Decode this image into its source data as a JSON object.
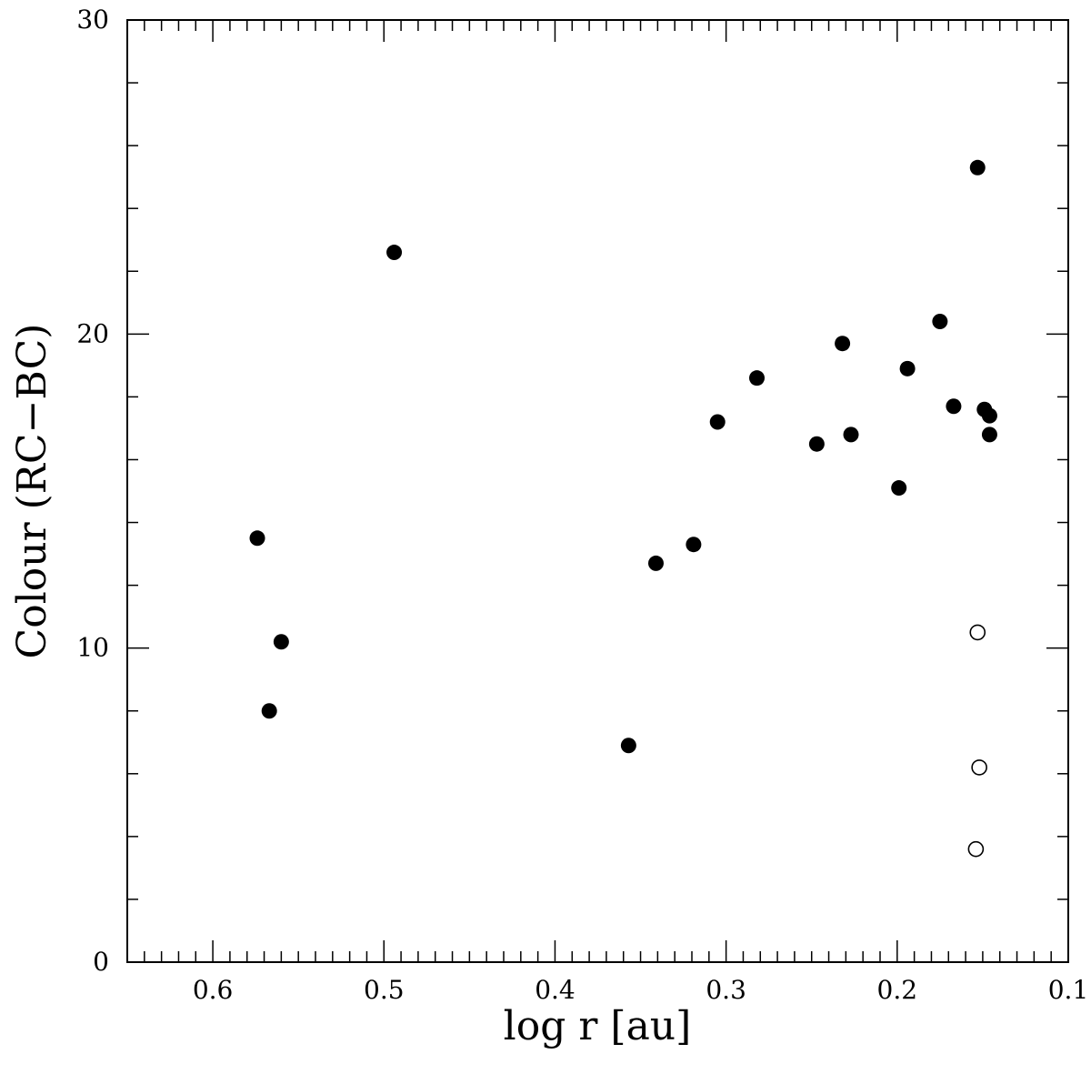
{
  "chart_data": {
    "type": "scatter",
    "title": "",
    "xlabel": "log r [au]",
    "ylabel": "Colour (RC−BC)",
    "xlim": [
      0.65,
      0.1
    ],
    "ylim": [
      0,
      30
    ],
    "x_reversed": true,
    "x_ticks": [
      0.6,
      0.5,
      0.4,
      0.3,
      0.2,
      0.1
    ],
    "x_tick_labels": [
      "0.6",
      "0.5",
      "0.4",
      "0.3",
      "0.2",
      "0.1"
    ],
    "y_ticks": [
      0,
      10,
      20,
      30
    ],
    "y_tick_labels": [
      "0",
      "10",
      "20",
      "30"
    ],
    "grid": false,
    "legend": "none",
    "series": [
      {
        "marker": "filled-circle",
        "color": "#000000",
        "points": [
          {
            "x": 0.574,
            "y": 13.5
          },
          {
            "x": 0.567,
            "y": 8.0
          },
          {
            "x": 0.56,
            "y": 10.2
          },
          {
            "x": 0.494,
            "y": 22.6
          },
          {
            "x": 0.357,
            "y": 6.9
          },
          {
            "x": 0.341,
            "y": 12.7
          },
          {
            "x": 0.319,
            "y": 13.3
          },
          {
            "x": 0.305,
            "y": 17.2
          },
          {
            "x": 0.282,
            "y": 18.6
          },
          {
            "x": 0.247,
            "y": 16.5
          },
          {
            "x": 0.232,
            "y": 19.7
          },
          {
            "x": 0.227,
            "y": 16.8
          },
          {
            "x": 0.199,
            "y": 15.1
          },
          {
            "x": 0.194,
            "y": 18.9
          },
          {
            "x": 0.175,
            "y": 20.4
          },
          {
            "x": 0.167,
            "y": 17.7
          },
          {
            "x": 0.153,
            "y": 25.3
          },
          {
            "x": 0.149,
            "y": 17.6
          },
          {
            "x": 0.146,
            "y": 17.4
          },
          {
            "x": 0.146,
            "y": 16.8
          }
        ]
      },
      {
        "marker": "open-circle",
        "color": "#000000",
        "points": [
          {
            "x": 0.153,
            "y": 10.5
          },
          {
            "x": 0.152,
            "y": 6.2
          },
          {
            "x": 0.154,
            "y": 3.6
          }
        ]
      }
    ]
  }
}
